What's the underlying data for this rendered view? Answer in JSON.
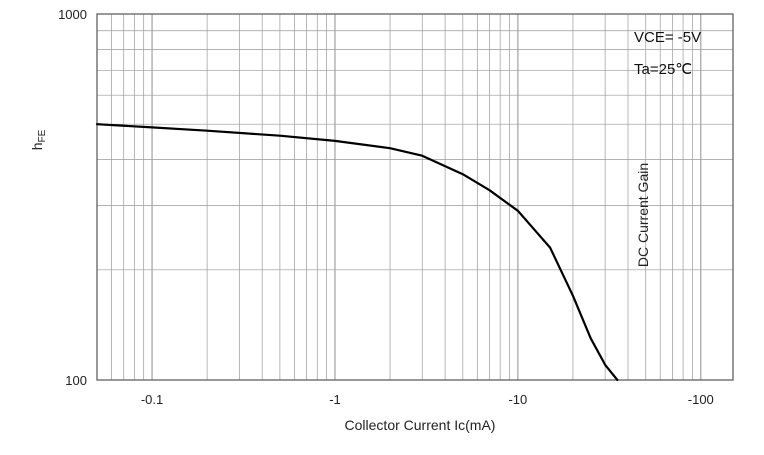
{
  "chart_data": {
    "type": "line",
    "title": "",
    "xlabel": "Collector Current   Ic(mA)",
    "ylabel_symbol": "h",
    "ylabel_subscript": "FE",
    "ylabel_side": "DC Current Gain",
    "x_scale": "log",
    "y_scale": "log",
    "xlim": [
      -0.05,
      -150
    ],
    "ylim": [
      100,
      1000
    ],
    "x_ticks": [
      {
        "value": -0.1,
        "label": "-0.1"
      },
      {
        "value": -1,
        "label": "-1"
      },
      {
        "value": -10,
        "label": "-10"
      },
      {
        "value": -100,
        "label": "-100"
      }
    ],
    "y_ticks": [
      {
        "value": 100,
        "label": "100"
      },
      {
        "value": 1000,
        "label": "1000"
      }
    ],
    "grid": true,
    "annotations": [
      "VCE= -5V",
      "Ta=25℃"
    ],
    "series": [
      {
        "x": [
          -0.05,
          -0.1,
          -0.2,
          -0.5,
          -1,
          -2,
          -3,
          -5,
          -7,
          -10,
          -15,
          -20,
          -25,
          -30,
          -35
        ],
        "y": [
          500,
          490,
          480,
          465,
          450,
          430,
          410,
          365,
          330,
          290,
          230,
          170,
          130,
          110,
          100
        ]
      }
    ],
    "colors": {
      "line": "#000000",
      "grid": "#9a9a9a",
      "axis": "#555555"
    }
  }
}
